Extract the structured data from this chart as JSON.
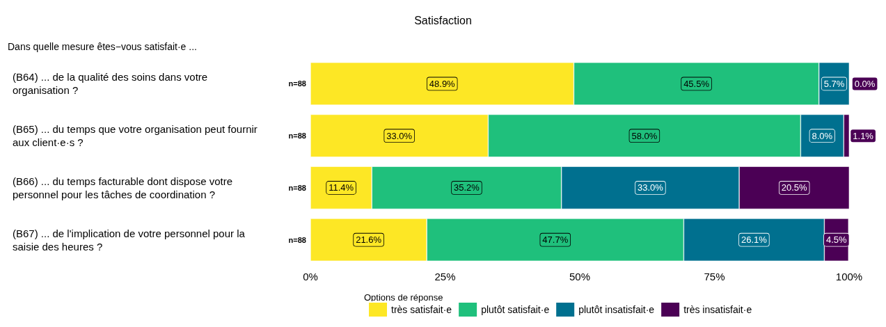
{
  "chart_data": {
    "type": "bar",
    "orientation": "horizontal",
    "stacked": true,
    "title": "Satisfaction",
    "subtitle": "Dans quelle mesure êtes−vous satisfait·e ...",
    "legend_title": "Options de réponse",
    "categories": [
      "(B64) ... de la qualité des soins dans votre organisation ?",
      "(B65) ... du temps que votre organisation peut fournir aux client·e·s ?",
      "(B66) ... du temps facturable dont dispose votre personnel pour les tâches de coordination ?",
      "(B67) ... de l'implication de votre personnel pour la saisie des heures ?"
    ],
    "series": [
      {
        "name": "très satisfait·e",
        "color": "#fde725",
        "values": [
          48.9,
          33.0,
          11.4,
          21.6
        ],
        "value_labels": [
          "48.9%",
          "33.0%",
          "11.4%",
          "21.6%"
        ]
      },
      {
        "name": "plutôt satisfait·e",
        "color": "#1fc07c",
        "values": [
          45.5,
          58.0,
          35.2,
          47.7
        ],
        "value_labels": [
          "45.5%",
          "58.0%",
          "35.2%",
          "47.7%"
        ]
      },
      {
        "name": "plutôt insatisfait·e",
        "color": "#00708f",
        "values": [
          5.7,
          8.0,
          33.0,
          26.1
        ],
        "value_labels": [
          "5.7%",
          "8.0%",
          "33.0%",
          "26.1%"
        ]
      },
      {
        "name": "très insatisfait·e",
        "color": "#4b0055",
        "values": [
          0.0,
          1.1,
          20.5,
          4.5
        ],
        "value_labels": [
          "0.0%",
          "1.1%",
          "20.5%",
          "4.5%"
        ]
      }
    ],
    "xlim": [
      0,
      100
    ],
    "xticks": [
      {
        "value": 0,
        "label": "0%"
      },
      {
        "value": 25,
        "label": "25%"
      },
      {
        "value": 50,
        "label": "50%"
      },
      {
        "value": 75,
        "label": "75%"
      },
      {
        "value": 100,
        "label": "100%"
      }
    ],
    "annotations": [
      "n=88",
      "n=88",
      "n=88",
      "n=88"
    ],
    "grid": false,
    "legend": "bottom"
  }
}
